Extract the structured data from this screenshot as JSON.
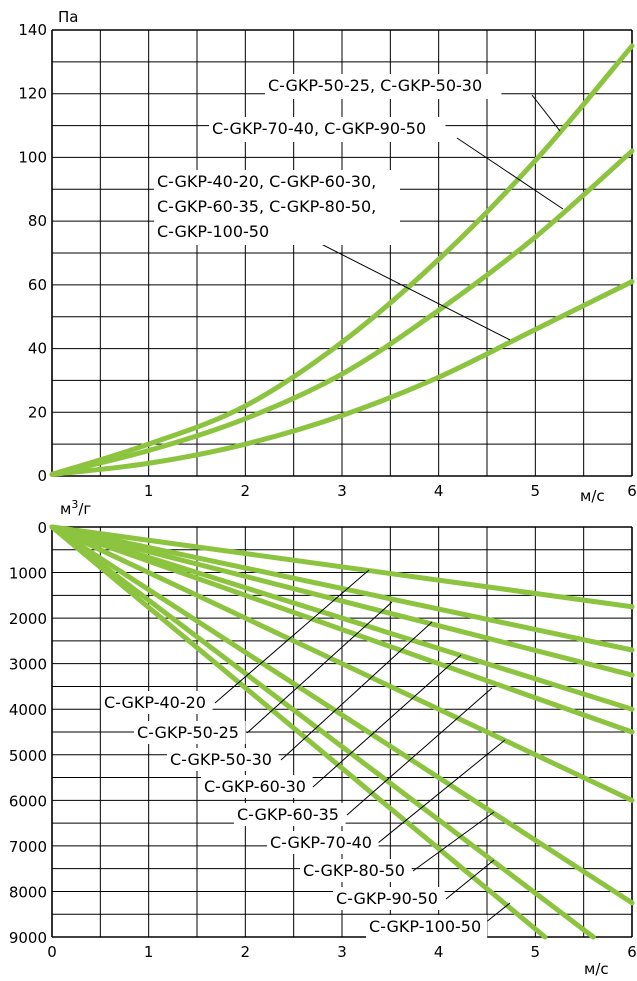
{
  "chart_data": [
    {
      "type": "line",
      "title": "",
      "ylabel": "Па",
      "xlabel": "м/с",
      "ylim": [
        0,
        140
      ],
      "xlim": [
        0,
        6
      ],
      "yticks": [
        0,
        20,
        40,
        60,
        80,
        100,
        120,
        140
      ],
      "xticks": [
        1,
        2,
        3,
        4,
        5,
        6
      ],
      "grid": true,
      "line_color": "#8cc43f",
      "series": [
        {
          "name": "C-GKP-50-25, C-GKP-50-30",
          "x": [
            0,
            1,
            2,
            3,
            4,
            5,
            6
          ],
          "y": [
            0.5,
            10,
            22,
            42,
            68,
            99,
            135
          ]
        },
        {
          "name": "C-GKP-70-40, C-GKP-90-50",
          "x": [
            0,
            1,
            2,
            3,
            4,
            5,
            6
          ],
          "y": [
            0.5,
            8,
            18,
            32,
            52,
            75,
            102
          ]
        },
        {
          "name": "C-GKP-40-20, C-GKP-60-30, C-GKP-60-35, C-GKP-80-50, C-GKP-100-50",
          "x": [
            0,
            1,
            2,
            3,
            4,
            5,
            6
          ],
          "y": [
            0.5,
            4,
            10,
            19,
            31,
            46,
            61
          ]
        }
      ],
      "annotations": [
        {
          "lines": [
            "C-GKP-50-25, C-GKP-50-30"
          ],
          "series": 0
        },
        {
          "lines": [
            "C-GKP-70-40, C-GKP-90-50"
          ],
          "series": 1
        },
        {
          "lines": [
            "C-GKP-40-20, C-GKP-60-30,",
            "C-GKP-60-35, C-GKP-80-50,",
            "C-GKP-100-50"
          ],
          "series": 2
        }
      ]
    },
    {
      "type": "line",
      "title": "",
      "ylabel": "м³/г",
      "xlabel": "м/с",
      "ylim": [
        0,
        9000
      ],
      "ylim_inverted": true,
      "xlim": [
        0,
        6
      ],
      "yticks": [
        0,
        1000,
        2000,
        3000,
        4000,
        5000,
        6000,
        7000,
        8000,
        9000
      ],
      "xticks": [
        0,
        1,
        2,
        3,
        4,
        5,
        6
      ],
      "grid": true,
      "line_color": "#8cc43f",
      "series": [
        {
          "name": "C-GKP-40-20",
          "x": [
            0,
            6
          ],
          "y": [
            0,
            1750
          ]
        },
        {
          "name": "C-GKP-50-25",
          "x": [
            0,
            6
          ],
          "y": [
            0,
            2700
          ]
        },
        {
          "name": "C-GKP-50-30",
          "x": [
            0,
            6
          ],
          "y": [
            0,
            3250
          ]
        },
        {
          "name": "C-GKP-60-30",
          "x": [
            0,
            6
          ],
          "y": [
            0,
            4000
          ]
        },
        {
          "name": "C-GKP-60-35",
          "x": [
            0,
            6
          ],
          "y": [
            0,
            4500
          ]
        },
        {
          "name": "C-GKP-70-40",
          "x": [
            0,
            6
          ],
          "y": [
            0,
            6000
          ]
        },
        {
          "name": "C-GKP-80-50",
          "x": [
            0,
            6
          ],
          "y": [
            0,
            8250
          ]
        },
        {
          "name": "C-GKP-90-50",
          "x": [
            0,
            5.6
          ],
          "y": [
            0,
            9000
          ]
        },
        {
          "name": "C-GKP-100-50",
          "x": [
            0,
            5.1
          ],
          "y": [
            0,
            9000
          ]
        }
      ]
    }
  ]
}
